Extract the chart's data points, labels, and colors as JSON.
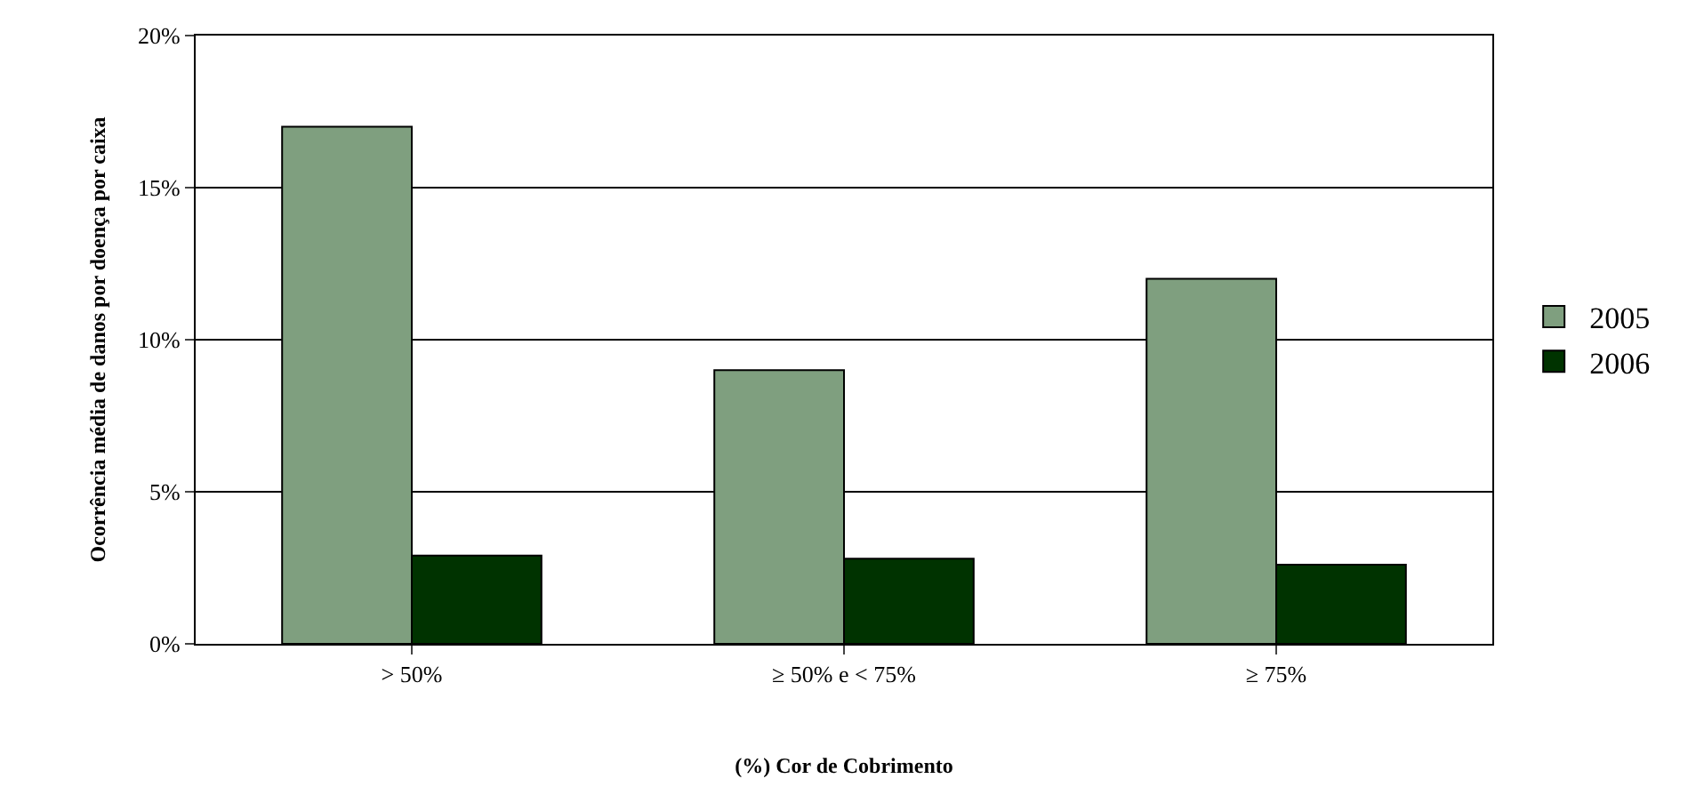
{
  "chart_data": {
    "type": "bar",
    "xlabel": "(%) Cor de Cobrimento",
    "ylabel": "Ocorrência média de danos por doença por caixa",
    "categories": [
      "> 50%",
      "≥ 50% e < 75%",
      "≥ 75%"
    ],
    "series": [
      {
        "name": "2005",
        "color": "#7f9f7f",
        "values": [
          17,
          9,
          12
        ]
      },
      {
        "name": "2006",
        "color": "#003300",
        "values": [
          2.9,
          2.8,
          2.6
        ]
      }
    ],
    "ylim": [
      0,
      20
    ],
    "yticks": [
      {
        "value": 0,
        "label": "0%"
      },
      {
        "value": 5,
        "label": "5%"
      },
      {
        "value": 10,
        "label": "10%"
      },
      {
        "value": 15,
        "label": "15%"
      },
      {
        "value": 20,
        "label": "20%"
      }
    ],
    "grid": "y",
    "legend": "right"
  }
}
